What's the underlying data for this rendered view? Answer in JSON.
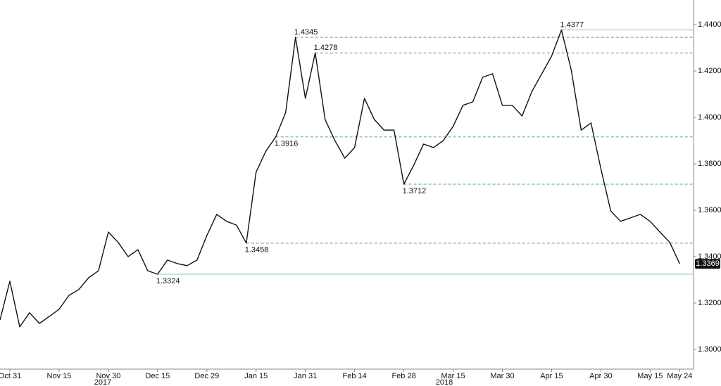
{
  "chart_data": {
    "type": "line",
    "categories": [
      null,
      "Oct 31",
      null,
      null,
      null,
      null,
      "Nov 15",
      null,
      null,
      null,
      null,
      "Nov 30",
      null,
      null,
      null,
      null,
      "Dec 15",
      null,
      null,
      null,
      null,
      "Dec 29",
      null,
      null,
      null,
      null,
      "Jan 15",
      null,
      null,
      null,
      null,
      "Jan 31",
      null,
      null,
      null,
      null,
      "Feb 14",
      null,
      null,
      null,
      null,
      "Feb 28",
      null,
      null,
      null,
      null,
      "Mar 15",
      null,
      null,
      null,
      null,
      "Mar 30",
      null,
      null,
      null,
      null,
      "Apr 15",
      null,
      null,
      null,
      null,
      "Apr 30",
      null,
      null,
      null,
      null,
      "May 15",
      null,
      null,
      "May 24"
    ],
    "year_labels": [
      "2017",
      "2018"
    ],
    "series": [
      {
        "color": "#111111",
        "values": [
          1.3127,
          1.3294,
          1.3097,
          1.3158,
          1.3112,
          1.3142,
          1.3173,
          1.3233,
          1.3258,
          1.3309,
          1.3339,
          1.3506,
          1.3461,
          1.34,
          1.343,
          1.3339,
          1.3324,
          1.3385,
          1.337,
          1.3361,
          1.3385,
          1.3491,
          1.3582,
          1.3552,
          1.3536,
          1.3458,
          1.3764,
          1.3855,
          1.3916,
          1.4021,
          1.4345,
          1.4082,
          1.4278,
          1.3991,
          1.39,
          1.3824,
          1.387,
          1.4082,
          1.3991,
          1.3945,
          1.3945,
          1.3712,
          1.3794,
          1.3885,
          1.387,
          1.39,
          1.3961,
          1.4052,
          1.4067,
          1.4173,
          1.4188,
          1.4052,
          1.4052,
          1.4006,
          1.4112,
          1.4188,
          1.4264,
          1.4377,
          1.4203,
          1.3945,
          1.3976,
          1.3779,
          1.3597,
          1.3552,
          1.3567,
          1.3582,
          1.3552,
          1.3506,
          1.3461,
          1.3369
        ]
      }
    ],
    "levels": [
      {
        "value": 1.4377,
        "style": "solid"
      },
      {
        "value": 1.4345,
        "style": "dashed"
      },
      {
        "value": 1.4278,
        "style": "dashed"
      },
      {
        "value": 1.3916,
        "style": "dashed"
      },
      {
        "value": 1.3712,
        "style": "dashed"
      },
      {
        "value": 1.3458,
        "style": "dashed"
      },
      {
        "value": 1.3324,
        "style": "solid"
      }
    ],
    "ylim": [
      1.2915,
      1.4506
    ],
    "yticks": [
      {
        "value": 1.3,
        "label": "1.3000"
      },
      {
        "value": 1.32,
        "label": "1.3200"
      },
      {
        "value": 1.34,
        "label": "1.3400"
      },
      {
        "value": 1.36,
        "label": "1.3600"
      },
      {
        "value": 1.38,
        "label": "1.3800"
      },
      {
        "value": 1.4,
        "label": "1.4000"
      },
      {
        "value": 1.42,
        "label": "1.4200"
      },
      {
        "value": 1.44,
        "label": "1.4400"
      }
    ],
    "grid": false
  }
}
